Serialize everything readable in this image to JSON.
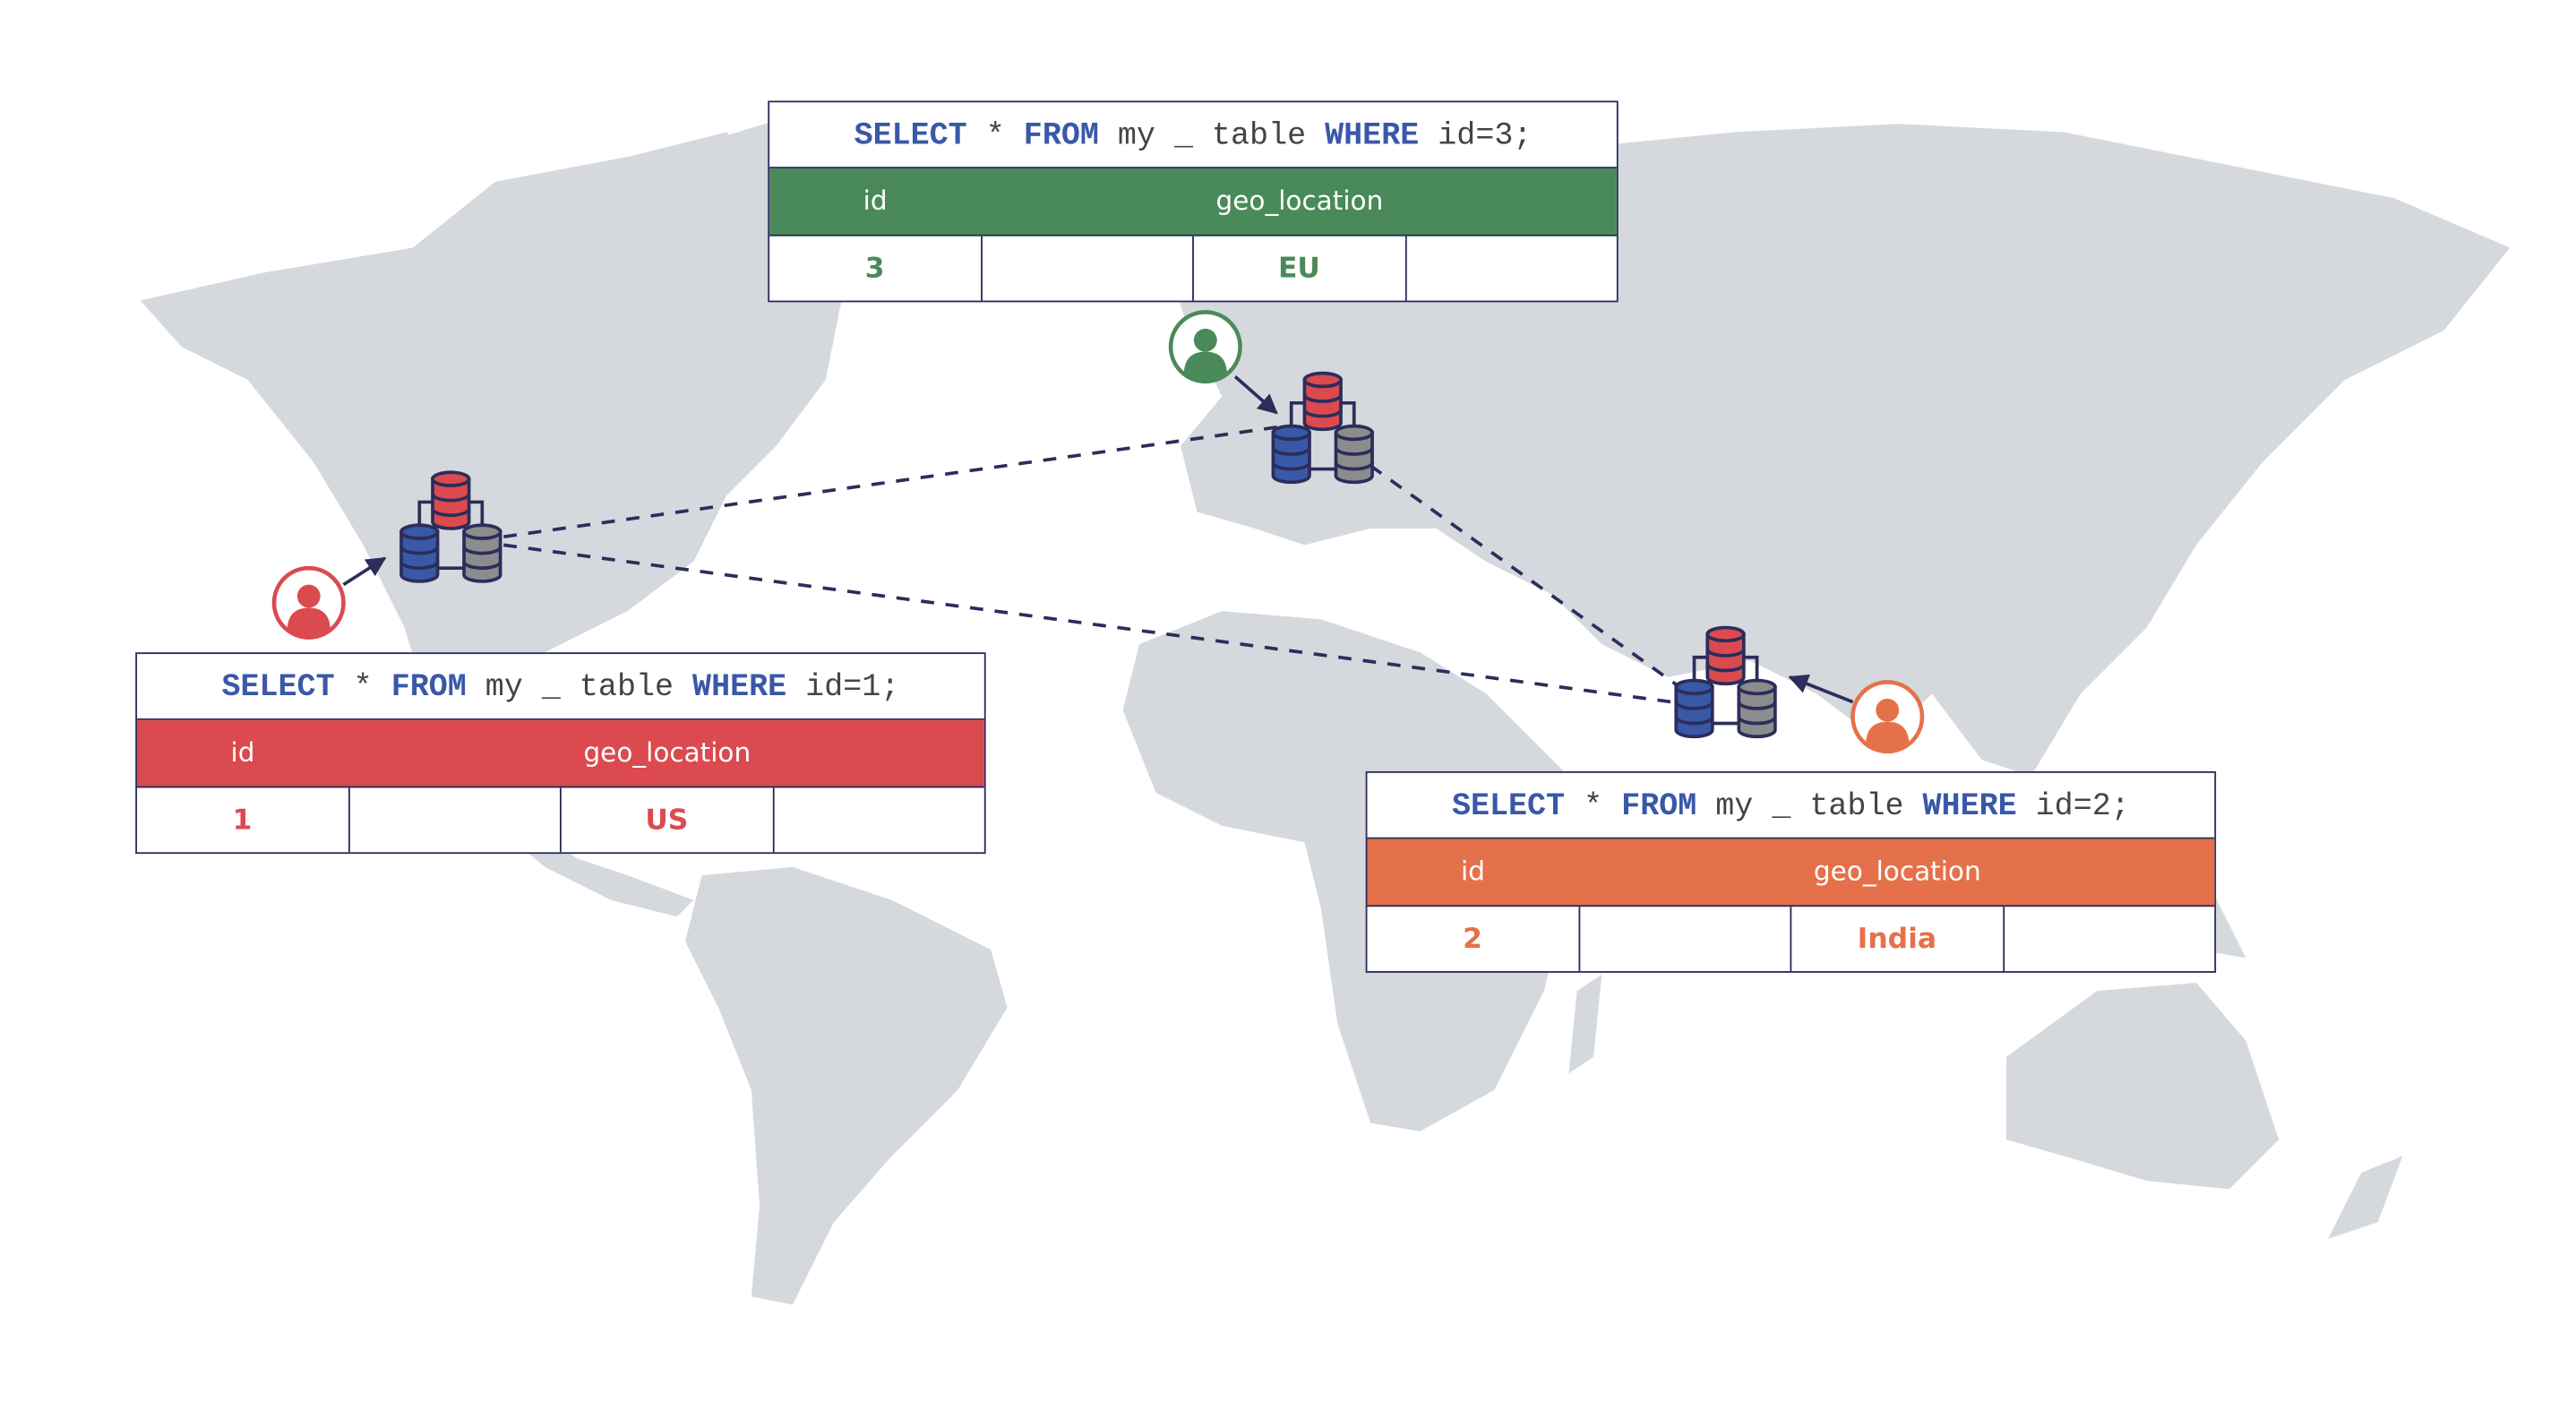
{
  "colors": {
    "us": "#db4a4f",
    "eu": "#4a8a5a",
    "india": "#e5714a",
    "keyword": "#3a58a8",
    "outline": "#2b2d5b",
    "map": "#d5d8dd",
    "db_red": "#db4a4f",
    "db_blue": "#3a58a8",
    "db_gray": "#8c8c8c"
  },
  "tables": {
    "eu": {
      "sql": {
        "k1": "SELECT",
        "t1": " * ",
        "k2": "FROM",
        "t2": " my _ table ",
        "k3": "WHERE",
        "t3": " id=3;"
      },
      "col_id": "id",
      "col_geo": "geo_location",
      "id": "3",
      "geo": "EU"
    },
    "us": {
      "sql": {
        "k1": "SELECT",
        "t1": " * ",
        "k2": "FROM",
        "t2": " my _ table ",
        "k3": "WHERE",
        "t3": " id=1;"
      },
      "col_id": "id",
      "col_geo": "geo_location",
      "id": "1",
      "geo": "US"
    },
    "india": {
      "sql": {
        "k1": "SELECT",
        "t1": " * ",
        "k2": "FROM",
        "t2": " my _ table ",
        "k3": "WHERE",
        "t3": " id=2;"
      },
      "col_id": "id",
      "col_geo": "geo_location",
      "id": "2",
      "geo": "India"
    }
  },
  "icons": {
    "user": "user-avatar-icon",
    "database": "database-cluster-icon"
  }
}
